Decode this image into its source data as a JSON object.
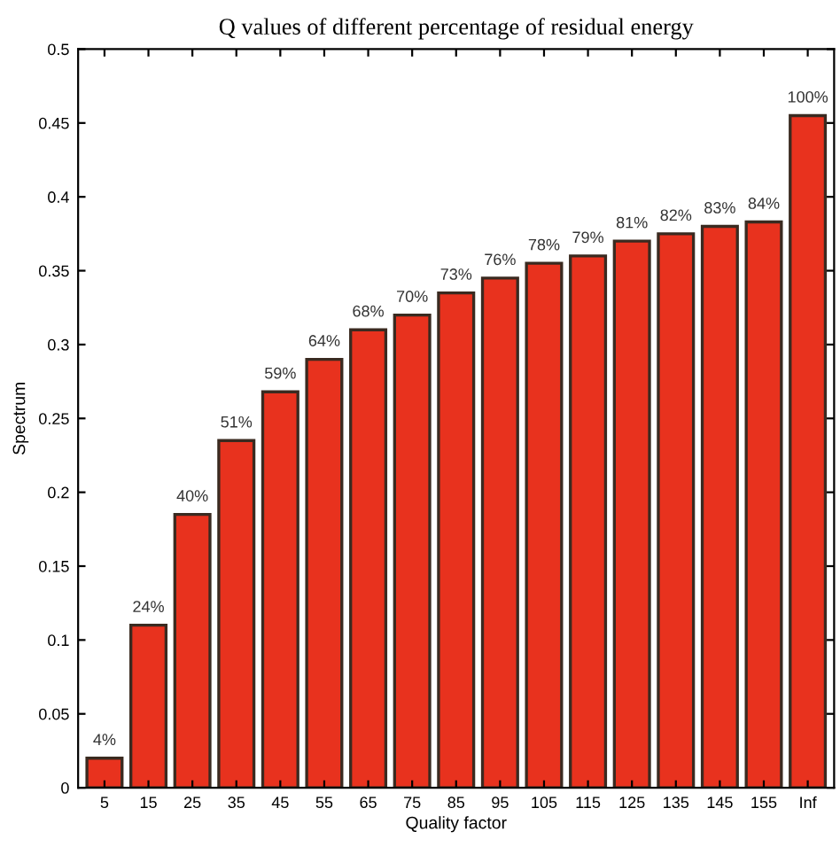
{
  "chart_data": {
    "type": "bar",
    "title": "Q values of different percentage of residual energy",
    "xlabel": "Quality factor",
    "ylabel": "Spectrum",
    "categories": [
      "5",
      "15",
      "25",
      "35",
      "45",
      "55",
      "65",
      "75",
      "85",
      "95",
      "105",
      "115",
      "125",
      "135",
      "145",
      "155",
      "Inf"
    ],
    "values": [
      0.02,
      0.11,
      0.185,
      0.235,
      0.268,
      0.29,
      0.31,
      0.32,
      0.335,
      0.345,
      0.355,
      0.36,
      0.37,
      0.375,
      0.38,
      0.383,
      0.455
    ],
    "annotations": [
      {
        "text": "4%",
        "x": "5",
        "y": 0.02
      },
      {
        "text": "24%",
        "x": "15",
        "y": 0.11
      },
      {
        "text": "40%",
        "x": "25",
        "y": 0.185
      },
      {
        "text": "51%",
        "x": "35",
        "y": 0.235
      },
      {
        "text": "59%",
        "x": "45",
        "y": 0.268
      },
      {
        "text": "64%",
        "x": "55",
        "y": 0.29
      },
      {
        "text": "68%",
        "x": "65",
        "y": 0.31
      },
      {
        "text": "70%",
        "x": "75",
        "y": 0.32
      },
      {
        "text": "73%",
        "x": "85",
        "y": 0.335
      },
      {
        "text": "76%",
        "x": "95",
        "y": 0.345
      },
      {
        "text": "78%",
        "x": "105",
        "y": 0.355
      },
      {
        "text": "79%",
        "x": "115",
        "y": 0.36
      },
      {
        "text": "81%",
        "x": "125",
        "y": 0.37
      },
      {
        "text": "82%",
        "x": "135",
        "y": 0.375
      },
      {
        "text": "83%",
        "x": "145",
        "y": 0.38
      },
      {
        "text": "84%",
        "x": "155",
        "y": 0.383
      },
      {
        "text": "100%",
        "x": "Inf",
        "y": 0.455
      }
    ],
    "color": "#e8321e",
    "ylim": [
      0,
      0.5
    ],
    "yticks": [
      0,
      0.05,
      0.1,
      0.15,
      0.2,
      0.25,
      0.3,
      0.35,
      0.4,
      0.45,
      0.5
    ],
    "grid": false
  }
}
